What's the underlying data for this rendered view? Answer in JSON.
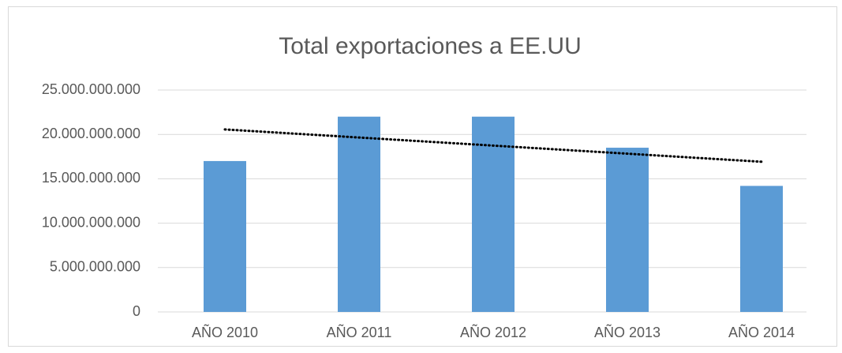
{
  "chart_data": {
    "type": "bar",
    "title": "Total exportaciones a EE.UU",
    "categories": [
      "AÑO 2010",
      "AÑO 2011",
      "AÑO 2012",
      "AÑO 2013",
      "AÑO 2014"
    ],
    "values": [
      17000000000,
      22000000000,
      22000000000,
      18500000000,
      14200000000
    ],
    "color": "#5b9bd5",
    "ylim": [
      0,
      25000000000
    ],
    "yticks": [
      0,
      {
        "value": 5000000000,
        "label": "5.000.000.000"
      },
      {
        "value": 10000000000,
        "label": "10.000.000.000"
      },
      {
        "value": 15000000000,
        "label": "15.000.000.000"
      },
      {
        "value": 20000000000,
        "label": "20.000.000.000"
      },
      {
        "value": 25000000000,
        "label": "25.000.000.000"
      }
    ],
    "grid": true,
    "trendline": "linear"
  }
}
